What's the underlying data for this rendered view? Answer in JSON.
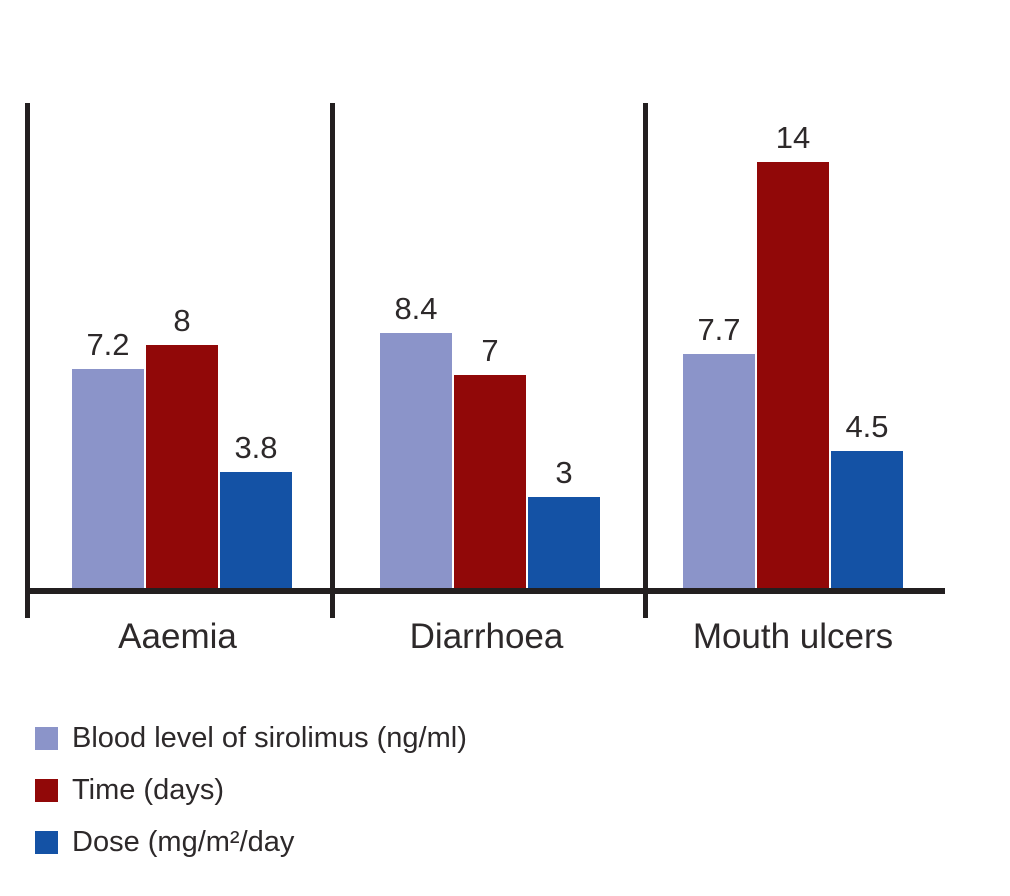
{
  "chart_data": {
    "type": "bar",
    "categories": [
      "Aaemia",
      "Diarrhoea",
      "Mouth ulcers"
    ],
    "series": [
      {
        "name": "Blood level of sirolimus (ng/ml)",
        "color": "#8b94c9",
        "values": [
          7.2,
          8.4,
          7.7
        ]
      },
      {
        "name": "Time (days)",
        "color": "#910808",
        "values": [
          8,
          7,
          14
        ]
      },
      {
        "name": "Dose (mg/m²/day",
        "color": "#1452a5",
        "values": [
          3.8,
          3,
          4.5
        ]
      }
    ],
    "title": "",
    "xlabel": "",
    "ylabel": "",
    "ylim": [
      0,
      16
    ],
    "grid": false,
    "y_axis_ticks": [],
    "value_labels_shown": true,
    "legend_position": "bottom-left",
    "axis_color": "#231f20",
    "text_color": "#2d292a",
    "background_color": "#ffffff"
  }
}
